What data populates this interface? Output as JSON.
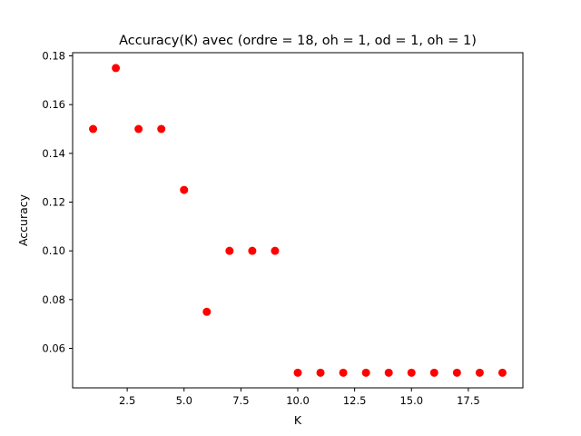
{
  "chart_data": {
    "type": "scatter",
    "title": "Accuracy(K) avec (ordre = 18, oh = 1, od = 1, oh = 1)",
    "xlabel": "K",
    "ylabel": "Accuracy",
    "xlim": [
      0.1,
      19.9
    ],
    "ylim": [
      0.0438,
      0.1813
    ],
    "xticks": [
      2.5,
      5.0,
      7.5,
      10.0,
      12.5,
      15.0,
      17.5
    ],
    "xtick_labels": [
      "2.5",
      "5.0",
      "7.5",
      "10.0",
      "12.5",
      "15.0",
      "17.5"
    ],
    "yticks": [
      0.06,
      0.08,
      0.1,
      0.12,
      0.14,
      0.16,
      0.18
    ],
    "ytick_labels": [
      "0.06",
      "0.08",
      "0.10",
      "0.12",
      "0.14",
      "0.16",
      "0.18"
    ],
    "grid": false,
    "series": [
      {
        "color": "#ff0000",
        "marker": "circle",
        "x": [
          1,
          2,
          3,
          4,
          5,
          6,
          7,
          8,
          9,
          10,
          11,
          12,
          13,
          14,
          15,
          16,
          17,
          18,
          19
        ],
        "y": [
          0.15,
          0.175,
          0.15,
          0.15,
          0.125,
          0.075,
          0.1,
          0.1,
          0.1,
          0.05,
          0.05,
          0.05,
          0.05,
          0.05,
          0.05,
          0.05,
          0.05,
          0.05,
          0.05
        ]
      }
    ]
  }
}
